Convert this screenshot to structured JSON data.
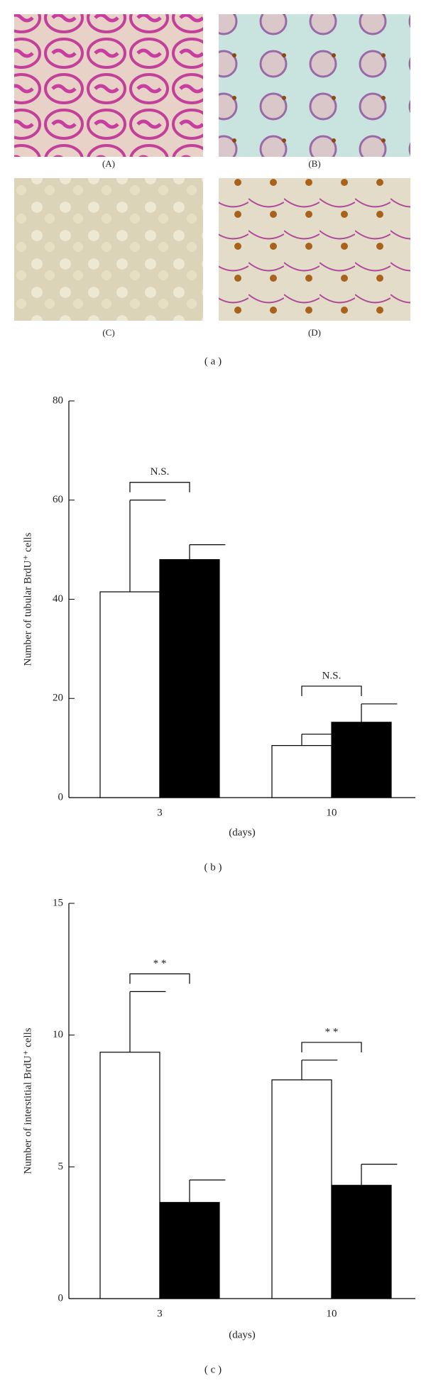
{
  "figure": {
    "panel_a": {
      "images": [
        "(A)",
        "(B)",
        "(C)",
        "(D)"
      ],
      "label": "( a )"
    },
    "charts": [
      {
        "type": "bar",
        "label": "( b )",
        "categories": [
          "3",
          "10"
        ],
        "xlabel": "(days)",
        "ylabel": "Number of tubular BrdU⁺ cells",
        "ylim": [
          0,
          80
        ],
        "yticks": [
          0,
          20,
          40,
          60,
          80
        ],
        "series": [
          {
            "color": "#ffffff",
            "values": [
              41.5,
              10.5
            ],
            "errors": [
              18.5,
              2.3
            ]
          },
          {
            "color": "#000000",
            "values": [
              48,
              15.2
            ],
            "errors": [
              3,
              3.7
            ]
          }
        ],
        "annotations": [
          "N.S.",
          "N.S."
        ]
      },
      {
        "type": "bar",
        "label": "( c )",
        "categories": [
          "3",
          "10"
        ],
        "xlabel": "(days)",
        "ylabel": "Number of interstitial BrdU⁺ cells",
        "ylim": [
          0,
          15
        ],
        "yticks": [
          0,
          5,
          10,
          15
        ],
        "series": [
          {
            "color": "#ffffff",
            "values": [
              9.35,
              8.3
            ],
            "errors": [
              2.3,
              0.75
            ]
          },
          {
            "color": "#000000",
            "values": [
              3.65,
              4.3
            ],
            "errors": [
              0.85,
              0.8
            ]
          }
        ],
        "annotations": [
          "* *",
          "* *"
        ]
      }
    ]
  }
}
